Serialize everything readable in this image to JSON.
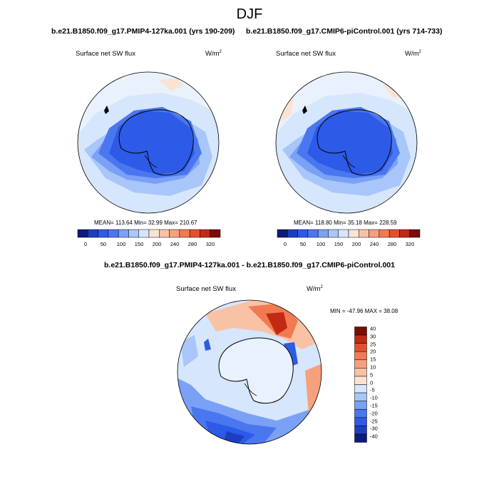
{
  "figure_title": "DJF",
  "panels": [
    {
      "case_title": "b.e21.B1850.f09_g17.PMIP4-127ka.001 (yrs 190-209)",
      "variable": "Surface net SW flux",
      "units_base": "W/m",
      "units_sup": "2",
      "stats": "MEAN= 113.64  Min=  32.99  Max= 210.67"
    },
    {
      "case_title": "b.e21.B1850.f09_g17.CMIP6-piControl.001 (yrs 714-733)",
      "variable": "Surface net SW flux",
      "units_base": "W/m",
      "units_sup": "2",
      "stats": "MEAN= 118.80  Min=  35.18  Max= 228.59"
    },
    {
      "case_title": "b.e21.B1850.f09_g17.PMIP4-127ka.001 - b.e21.B1850.f09_g17.CMIP6-piControl.001",
      "variable": "Surface net SW flux",
      "units_base": "W/m",
      "units_sup": "2",
      "stats": "MIN = -47.96 MAX =  38.08"
    }
  ],
  "abs_colorbar": {
    "colors": [
      "#0a1b7a",
      "#1b3fbf",
      "#2d5ae6",
      "#4a77f0",
      "#7aa1f5",
      "#a8c6fa",
      "#d6e6fc",
      "#fbe3d2",
      "#f9c2a5",
      "#f6a07d",
      "#f27a52",
      "#e2502b",
      "#c02a12",
      "#7a0c05"
    ],
    "labels": [
      "0",
      "50",
      "100",
      "150",
      "200",
      "240",
      "280",
      "320"
    ]
  },
  "diff_colorbar": {
    "colors": [
      "#7a0c05",
      "#c02a12",
      "#e2502b",
      "#f27a52",
      "#f6a07d",
      "#f9c2a5",
      "#fbe3d2",
      "#d6e6fc",
      "#a8c6fa",
      "#7aa1f5",
      "#4a77f0",
      "#2d5ae6",
      "#1b3fbf",
      "#0a1b7a"
    ],
    "labels": [
      "40",
      "30",
      "25",
      "20",
      "15",
      "10",
      "5",
      "0",
      "-5",
      "-10",
      "-15",
      "-20",
      "-25",
      "-30",
      "-40"
    ]
  }
}
